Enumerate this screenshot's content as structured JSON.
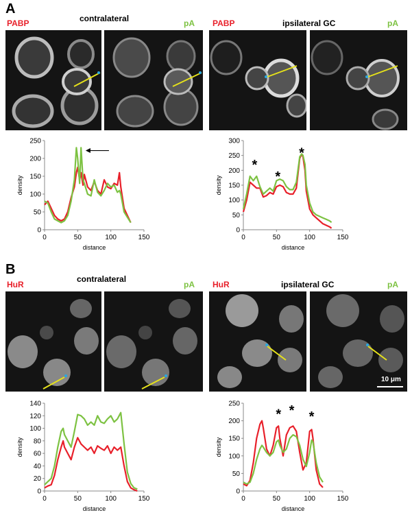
{
  "panels": {
    "A": {
      "letter": "A",
      "left": {
        "stain": "PABP",
        "title": "contralateral",
        "probe": "pA"
      },
      "right": {
        "stain": "PABP",
        "title": "ipsilateral GC",
        "probe": "pA"
      }
    },
    "B": {
      "letter": "B",
      "left": {
        "stain": "HuR",
        "title": "contralateral",
        "probe": "pA"
      },
      "right": {
        "stain": "HuR",
        "title": "ipsilateral GC",
        "probe": "pA"
      },
      "scalebar": "10 μm"
    }
  },
  "colors": {
    "red": "#e8202a",
    "green": "#7dc242",
    "line": "#e6e21a",
    "marker": "#29a8e0"
  },
  "chart_data": [
    {
      "id": "A-left",
      "type": "line",
      "xlabel": "distance",
      "ylabel": "density",
      "xlim": [
        0,
        150
      ],
      "ylim": [
        0,
        250
      ],
      "xticks": [
        0,
        50,
        100,
        150
      ],
      "yticks": [
        0,
        50,
        100,
        150,
        200,
        250
      ],
      "annotations": {
        "arrow_at": [
          62,
          222
        ],
        "stars": []
      },
      "series": [
        {
          "color": "red",
          "x": [
            0,
            5,
            10,
            15,
            20,
            25,
            30,
            35,
            40,
            45,
            48,
            50,
            53,
            55,
            58,
            60,
            65,
            70,
            75,
            80,
            85,
            90,
            95,
            100,
            105,
            110,
            113,
            115,
            120,
            125,
            130
          ],
          "y": [
            70,
            80,
            60,
            40,
            30,
            25,
            30,
            50,
            90,
            120,
            160,
            175,
            140,
            160,
            125,
            155,
            120,
            110,
            135,
            110,
            100,
            140,
            120,
            115,
            130,
            125,
            160,
            120,
            60,
            40,
            20
          ]
        },
        {
          "color": "green",
          "x": [
            0,
            5,
            10,
            15,
            20,
            25,
            30,
            35,
            40,
            45,
            48,
            50,
            53,
            55,
            58,
            60,
            65,
            70,
            75,
            80,
            85,
            90,
            95,
            100,
            105,
            110,
            113,
            115,
            120,
            125,
            130
          ],
          "y": [
            80,
            75,
            50,
            30,
            25,
            20,
            25,
            40,
            80,
            140,
            230,
            200,
            130,
            230,
            140,
            130,
            100,
            95,
            140,
            105,
            95,
            110,
            130,
            120,
            125,
            105,
            110,
            100,
            50,
            35,
            20
          ]
        }
      ]
    },
    {
      "id": "A-right",
      "type": "line",
      "xlabel": "distance",
      "ylabel": "density",
      "xlim": [
        0,
        150
      ],
      "ylim": [
        0,
        300
      ],
      "xticks": [
        0,
        50,
        100,
        150
      ],
      "yticks": [
        0,
        50,
        100,
        150,
        200,
        250,
        300
      ],
      "annotations": {
        "arrow_at": null,
        "stars": [
          [
            17,
            222
          ],
          [
            52,
            182
          ],
          [
            88,
            262
          ]
        ]
      },
      "series": [
        {
          "color": "red",
          "x": [
            0,
            5,
            10,
            15,
            20,
            25,
            30,
            35,
            40,
            45,
            50,
            55,
            60,
            65,
            70,
            75,
            80,
            85,
            88,
            90,
            93,
            95,
            100,
            105,
            110,
            115,
            120,
            125,
            130,
            133
          ],
          "y": [
            60,
            100,
            160,
            150,
            140,
            140,
            110,
            115,
            125,
            120,
            145,
            150,
            145,
            125,
            120,
            120,
            140,
            240,
            255,
            245,
            200,
            130,
            70,
            50,
            40,
            30,
            20,
            15,
            10,
            5
          ]
        },
        {
          "color": "green",
          "x": [
            0,
            5,
            10,
            15,
            20,
            25,
            30,
            35,
            40,
            45,
            50,
            55,
            60,
            65,
            70,
            75,
            80,
            85,
            88,
            90,
            93,
            95,
            100,
            105,
            110,
            115,
            120,
            125,
            130,
            133
          ],
          "y": [
            70,
            120,
            180,
            165,
            180,
            145,
            120,
            130,
            140,
            130,
            165,
            170,
            165,
            145,
            135,
            135,
            160,
            245,
            255,
            250,
            220,
            150,
            90,
            60,
            50,
            45,
            40,
            35,
            30,
            25
          ]
        }
      ]
    },
    {
      "id": "B-left",
      "type": "line",
      "xlabel": "distance",
      "ylabel": "density",
      "xlim": [
        0,
        150
      ],
      "ylim": [
        0,
        140
      ],
      "xticks": [
        0,
        50,
        100,
        150
      ],
      "yticks": [
        0,
        20,
        40,
        60,
        80,
        100,
        120,
        140
      ],
      "annotations": {
        "arrow_at": null,
        "stars": []
      },
      "series": [
        {
          "color": "red",
          "x": [
            0,
            5,
            10,
            15,
            20,
            25,
            28,
            30,
            35,
            40,
            45,
            50,
            55,
            60,
            65,
            70,
            75,
            80,
            85,
            90,
            95,
            100,
            105,
            110,
            115,
            120,
            125,
            130,
            135,
            140
          ],
          "y": [
            5,
            8,
            10,
            25,
            50,
            70,
            80,
            70,
            60,
            50,
            70,
            85,
            75,
            70,
            65,
            70,
            60,
            72,
            68,
            65,
            72,
            60,
            70,
            65,
            70,
            40,
            15,
            5,
            2,
            0
          ]
        },
        {
          "color": "green",
          "x": [
            0,
            5,
            10,
            15,
            20,
            25,
            28,
            30,
            35,
            40,
            45,
            50,
            55,
            60,
            65,
            70,
            75,
            80,
            85,
            90,
            95,
            100,
            105,
            110,
            115,
            120,
            125,
            130,
            135,
            140
          ],
          "y": [
            10,
            15,
            20,
            40,
            70,
            95,
            100,
            90,
            80,
            70,
            95,
            122,
            120,
            115,
            105,
            110,
            105,
            120,
            110,
            108,
            115,
            120,
            110,
            115,
            125,
            75,
            30,
            12,
            5,
            3
          ]
        }
      ]
    },
    {
      "id": "B-right",
      "type": "line",
      "xlabel": "distance",
      "ylabel": "density",
      "xlim": [
        0,
        150
      ],
      "ylim": [
        0,
        250
      ],
      "xticks": [
        0,
        50,
        100,
        150
      ],
      "yticks": [
        0,
        50,
        100,
        150,
        200,
        250
      ],
      "annotations": {
        "arrow_at": null,
        "stars": [
          [
            53,
            222
          ],
          [
            73,
            232
          ],
          [
            103,
            215
          ]
        ]
      },
      "series": [
        {
          "color": "red",
          "x": [
            0,
            5,
            10,
            15,
            20,
            25,
            28,
            30,
            35,
            40,
            45,
            50,
            53,
            55,
            60,
            65,
            70,
            75,
            80,
            85,
            90,
            95,
            100,
            103,
            105,
            110,
            115,
            120
          ],
          "y": [
            20,
            15,
            30,
            80,
            150,
            190,
            200,
            180,
            120,
            100,
            130,
            180,
            185,
            150,
            100,
            160,
            180,
            185,
            170,
            110,
            60,
            80,
            170,
            175,
            150,
            60,
            20,
            10
          ]
        },
        {
          "color": "green",
          "x": [
            0,
            5,
            10,
            15,
            20,
            25,
            28,
            30,
            35,
            40,
            45,
            50,
            53,
            55,
            60,
            65,
            70,
            75,
            80,
            85,
            90,
            95,
            100,
            103,
            105,
            110,
            115,
            120
          ],
          "y": [
            25,
            20,
            25,
            50,
            90,
            120,
            130,
            125,
            110,
            100,
            110,
            140,
            145,
            130,
            110,
            120,
            150,
            160,
            155,
            130,
            90,
            70,
            110,
            145,
            140,
            80,
            40,
            25
          ]
        }
      ]
    }
  ]
}
